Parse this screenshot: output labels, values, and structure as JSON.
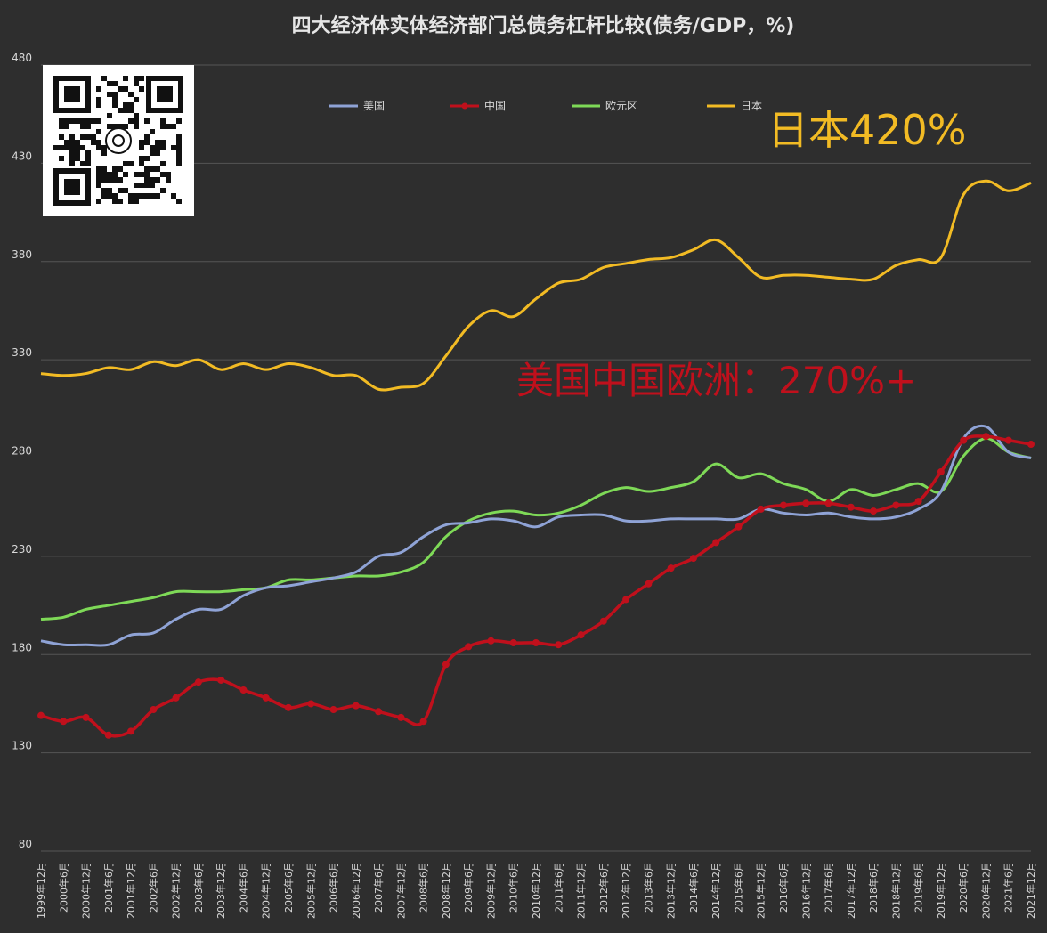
{
  "colors": {
    "usa": "#8fa3d6",
    "china": "#c0101c",
    "euro": "#7ed957",
    "japan": "#f2bb24",
    "bg": "#2e2e2e",
    "grid": "#555555",
    "text": "#d8d8d8"
  },
  "chart_data": {
    "type": "line",
    "title": "四大经济体实体经济部门总债务杠杆比较(债务/GDP，%)",
    "ylim": [
      80,
      480
    ],
    "yticks": [
      80,
      130,
      180,
      230,
      280,
      330,
      380,
      430,
      480
    ],
    "grid": true,
    "legend_position": "top",
    "x_start": "1999-12",
    "x_end": "2021-12",
    "xtick_labels": [
      "1999年12月",
      "2000年6月",
      "2000年12月",
      "2001年6月",
      "2001年12月",
      "2002年6月",
      "2002年12月",
      "2003年6月",
      "2003年12月",
      "2004年6月",
      "2004年12月",
      "2005年6月",
      "2005年12月",
      "2006年6月",
      "2006年12月",
      "2007年6月",
      "2007年12月",
      "2008年6月",
      "2008年12月",
      "2009年6月",
      "2009年12月",
      "2010年6月",
      "2010年12月",
      "2011年6月",
      "2011年12月",
      "2012年6月",
      "2012年12月",
      "2013年6月",
      "2013年12月",
      "2014年6月",
      "2014年12月",
      "2015年6月",
      "2015年12月",
      "2016年6月",
      "2016年12月",
      "2017年6月",
      "2017年12月",
      "2018年6月",
      "2018年12月",
      "2019年6月",
      "2019年12月",
      "2020年6月",
      "2020年12月",
      "2021年6月",
      "2021年12月"
    ],
    "annotations": [
      {
        "text": "日本420%",
        "color": "#f2bb24"
      },
      {
        "text": "美国中国欧洲：270%+",
        "color": "#c0101c"
      }
    ],
    "series": [
      {
        "name": "美国",
        "key": "usa",
        "points": [
          [
            "1999-12",
            187
          ],
          [
            "2000-06",
            185
          ],
          [
            "2000-12",
            185
          ],
          [
            "2001-06",
            185
          ],
          [
            "2001-12",
            190
          ],
          [
            "2002-06",
            191
          ],
          [
            "2002-12",
            198
          ],
          [
            "2003-06",
            203
          ],
          [
            "2003-12",
            203
          ],
          [
            "2004-06",
            210
          ],
          [
            "2004-12",
            214
          ],
          [
            "2005-06",
            215
          ],
          [
            "2005-12",
            217
          ],
          [
            "2006-06",
            219
          ],
          [
            "2006-12",
            222
          ],
          [
            "2007-06",
            230
          ],
          [
            "2007-12",
            232
          ],
          [
            "2008-06",
            240
          ],
          [
            "2008-12",
            246
          ],
          [
            "2009-06",
            247
          ],
          [
            "2009-12",
            249
          ],
          [
            "2010-06",
            248
          ],
          [
            "2010-12",
            245
          ],
          [
            "2011-06",
            250
          ],
          [
            "2011-12",
            251
          ],
          [
            "2012-06",
            251
          ],
          [
            "2012-12",
            248
          ],
          [
            "2013-06",
            248
          ],
          [
            "2013-12",
            249
          ],
          [
            "2014-06",
            249
          ],
          [
            "2014-12",
            249
          ],
          [
            "2015-06",
            249
          ],
          [
            "2015-12",
            254
          ],
          [
            "2016-06",
            252
          ],
          [
            "2016-12",
            251
          ],
          [
            "2017-06",
            252
          ],
          [
            "2017-12",
            250
          ],
          [
            "2018-06",
            249
          ],
          [
            "2018-12",
            250
          ],
          [
            "2019-06",
            254
          ],
          [
            "2019-12",
            263
          ],
          [
            "2020-06",
            290
          ],
          [
            "2020-12",
            296
          ],
          [
            "2021-06",
            283
          ],
          [
            "2021-12",
            280
          ]
        ]
      },
      {
        "name": "中国",
        "key": "china",
        "points": [
          [
            "1999-12",
            149
          ],
          [
            "2000-06",
            146
          ],
          [
            "2000-12",
            148
          ],
          [
            "2001-06",
            139
          ],
          [
            "2001-12",
            141
          ],
          [
            "2002-06",
            152
          ],
          [
            "2002-12",
            158
          ],
          [
            "2003-06",
            166
          ],
          [
            "2003-12",
            167
          ],
          [
            "2004-06",
            162
          ],
          [
            "2004-12",
            158
          ],
          [
            "2005-06",
            153
          ],
          [
            "2005-12",
            155
          ],
          [
            "2006-06",
            152
          ],
          [
            "2006-12",
            154
          ],
          [
            "2007-06",
            151
          ],
          [
            "2007-12",
            148
          ],
          [
            "2008-06",
            146
          ],
          [
            "2008-12",
            175
          ],
          [
            "2009-06",
            184
          ],
          [
            "2009-12",
            187
          ],
          [
            "2010-06",
            186
          ],
          [
            "2010-12",
            186
          ],
          [
            "2011-06",
            185
          ],
          [
            "2011-12",
            190
          ],
          [
            "2012-06",
            197
          ],
          [
            "2012-12",
            208
          ],
          [
            "2013-06",
            216
          ],
          [
            "2013-12",
            224
          ],
          [
            "2014-06",
            229
          ],
          [
            "2014-12",
            237
          ],
          [
            "2015-06",
            245
          ],
          [
            "2015-12",
            254
          ],
          [
            "2016-06",
            256
          ],
          [
            "2016-12",
            257
          ],
          [
            "2017-06",
            257
          ],
          [
            "2017-12",
            255
          ],
          [
            "2018-06",
            253
          ],
          [
            "2018-12",
            256
          ],
          [
            "2019-06",
            258
          ],
          [
            "2019-12",
            273
          ],
          [
            "2020-06",
            289
          ],
          [
            "2020-12",
            291
          ],
          [
            "2021-06",
            289
          ],
          [
            "2021-12",
            287
          ]
        ]
      },
      {
        "name": "欧元区",
        "key": "euro",
        "points": [
          [
            "1999-12",
            198
          ],
          [
            "2000-06",
            199
          ],
          [
            "2000-12",
            203
          ],
          [
            "2001-06",
            205
          ],
          [
            "2001-12",
            207
          ],
          [
            "2002-06",
            209
          ],
          [
            "2002-12",
            212
          ],
          [
            "2003-06",
            212
          ],
          [
            "2003-12",
            212
          ],
          [
            "2004-06",
            213
          ],
          [
            "2004-12",
            214
          ],
          [
            "2005-06",
            218
          ],
          [
            "2005-12",
            218
          ],
          [
            "2006-06",
            219
          ],
          [
            "2006-12",
            220
          ],
          [
            "2007-06",
            220
          ],
          [
            "2007-12",
            222
          ],
          [
            "2008-06",
            227
          ],
          [
            "2008-12",
            240
          ],
          [
            "2009-06",
            248
          ],
          [
            "2009-12",
            252
          ],
          [
            "2010-06",
            253
          ],
          [
            "2010-12",
            251
          ],
          [
            "2011-06",
            252
          ],
          [
            "2011-12",
            256
          ],
          [
            "2012-06",
            262
          ],
          [
            "2012-12",
            265
          ],
          [
            "2013-06",
            263
          ],
          [
            "2013-12",
            265
          ],
          [
            "2014-06",
            268
          ],
          [
            "2014-12",
            277
          ],
          [
            "2015-06",
            270
          ],
          [
            "2015-12",
            272
          ],
          [
            "2016-06",
            267
          ],
          [
            "2016-12",
            264
          ],
          [
            "2017-06",
            258
          ],
          [
            "2017-12",
            264
          ],
          [
            "2018-06",
            261
          ],
          [
            "2018-12",
            264
          ],
          [
            "2019-06",
            267
          ],
          [
            "2019-12",
            263
          ],
          [
            "2020-06",
            281
          ],
          [
            "2020-12",
            290
          ],
          [
            "2021-06",
            283
          ],
          [
            "2021-12",
            280
          ]
        ]
      },
      {
        "name": "日本",
        "key": "japan",
        "points": [
          [
            "1999-12",
            323
          ],
          [
            "2000-06",
            322
          ],
          [
            "2000-12",
            323
          ],
          [
            "2001-06",
            326
          ],
          [
            "2001-12",
            325
          ],
          [
            "2002-06",
            329
          ],
          [
            "2002-12",
            327
          ],
          [
            "2003-06",
            330
          ],
          [
            "2003-12",
            325
          ],
          [
            "2004-06",
            328
          ],
          [
            "2004-12",
            325
          ],
          [
            "2005-06",
            328
          ],
          [
            "2005-12",
            326
          ],
          [
            "2006-06",
            322
          ],
          [
            "2006-12",
            322
          ],
          [
            "2007-06",
            315
          ],
          [
            "2007-12",
            316
          ],
          [
            "2008-06",
            318
          ],
          [
            "2008-12",
            332
          ],
          [
            "2009-06",
            347
          ],
          [
            "2009-12",
            355
          ],
          [
            "2010-06",
            352
          ],
          [
            "2010-12",
            361
          ],
          [
            "2011-06",
            369
          ],
          [
            "2011-12",
            371
          ],
          [
            "2012-06",
            377
          ],
          [
            "2012-12",
            379
          ],
          [
            "2013-06",
            381
          ],
          [
            "2013-12",
            382
          ],
          [
            "2014-06",
            386
          ],
          [
            "2014-12",
            391
          ],
          [
            "2015-06",
            382
          ],
          [
            "2015-12",
            372
          ],
          [
            "2016-06",
            373
          ],
          [
            "2016-12",
            373
          ],
          [
            "2017-06",
            372
          ],
          [
            "2017-12",
            371
          ],
          [
            "2018-06",
            371
          ],
          [
            "2018-12",
            378
          ],
          [
            "2019-06",
            381
          ],
          [
            "2019-12",
            382
          ],
          [
            "2020-06",
            414
          ],
          [
            "2020-12",
            421
          ],
          [
            "2021-06",
            416
          ],
          [
            "2021-12",
            420
          ]
        ]
      }
    ]
  }
}
